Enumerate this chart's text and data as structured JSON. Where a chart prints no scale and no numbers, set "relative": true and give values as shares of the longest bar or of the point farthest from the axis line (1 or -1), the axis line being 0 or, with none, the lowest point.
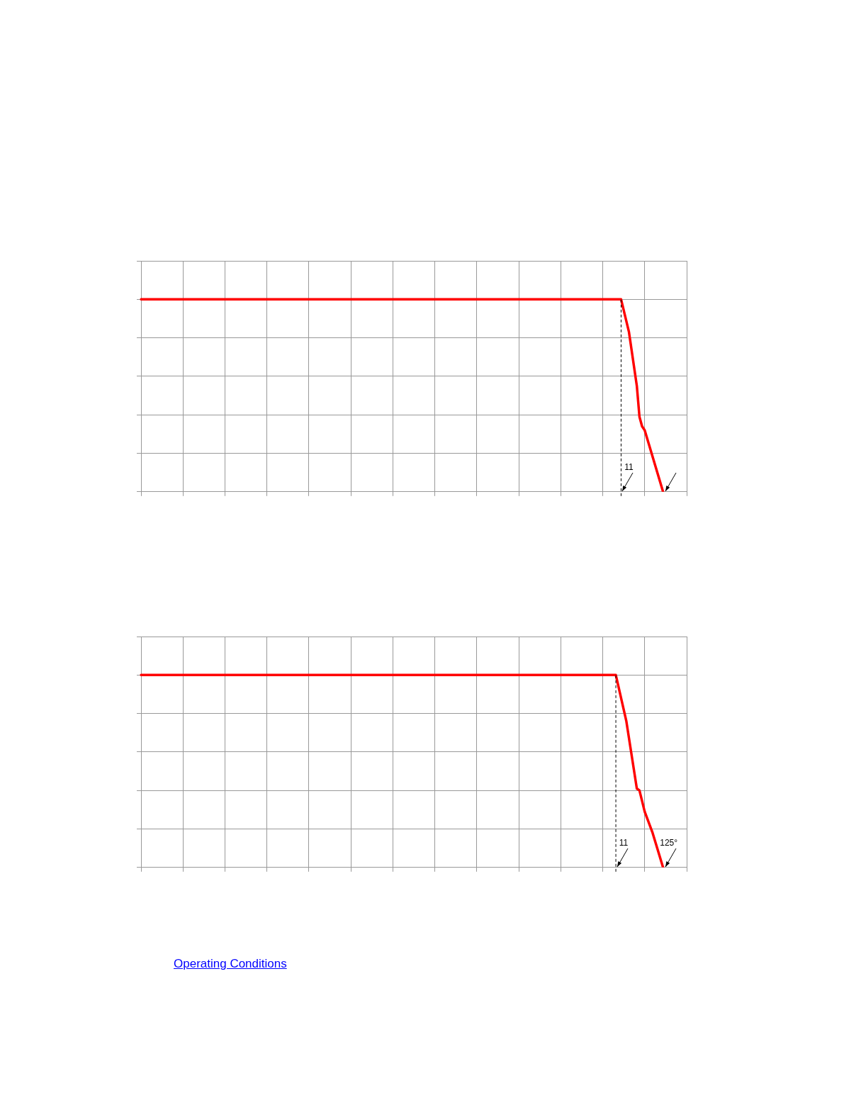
{
  "chart_data": [
    {
      "type": "line",
      "relative": true,
      "grid": true,
      "categories": [
        null,
        null,
        null,
        null,
        null,
        null,
        null,
        null,
        null,
        null,
        null,
        null,
        null,
        null,
        null,
        null,
        null,
        null,
        null,
        null,
        null,
        null,
        null,
        null,
        null,
        null,
        null,
        null,
        null,
        null,
        null,
        null,
        null,
        null,
        null,
        null,
        null,
        null,
        null,
        null,
        null,
        null,
        null,
        null,
        null,
        null,
        null,
        null,
        null,
        null,
        null,
        null,
        null,
        null,
        null,
        null,
        null,
        null,
        null,
        null,
        null,
        null,
        null,
        null,
        null,
        null,
        null,
        null,
        null,
        null,
        null,
        null,
        null,
        null,
        null,
        null,
        null,
        null,
        null,
        null,
        null,
        null,
        null,
        null,
        null,
        null,
        null,
        null,
        null,
        null,
        null,
        null,
        null,
        null,
        null,
        null,
        null,
        null,
        null,
        null,
        null,
        null,
        null,
        null,
        null,
        null,
        null,
        null,
        null,
        null,
        null,
        null,
        null,
        null,
        null,
        null,
        null,
        null,
        null,
        null,
        null,
        null,
        null,
        null,
        null,
        null,
        null,
        null,
        null,
        null,
        null,
        null,
        null,
        null,
        null,
        null,
        null,
        null,
        null,
        null,
        null,
        null,
        null,
        null,
        null,
        null,
        null,
        null,
        null,
        null,
        null,
        null,
        null,
        null,
        null,
        null,
        null,
        null,
        null,
        null,
        null,
        null,
        null,
        null,
        null,
        null,
        null,
        null,
        null,
        null,
        null,
        null,
        null,
        null,
        null,
        null,
        null,
        null,
        null,
        null,
        null,
        null,
        null,
        null,
        null,
        null,
        null,
        null,
        null,
        null,
        null,
        null,
        null,
        null,
        null,
        null,
        null,
        null,
        null,
        null,
        null,
        null,
        null,
        null,
        null,
        null,
        null,
        null,
        null
      ],
      "series": [
        {
          "color": "#ff0000",
          "values": [
            1,
            1,
            1,
            1,
            1,
            1,
            1,
            1,
            1,
            1,
            1,
            1,
            1,
            1,
            1,
            1,
            1,
            1,
            1,
            1,
            1,
            1,
            1,
            1,
            1,
            1,
            1,
            1,
            1,
            1,
            1,
            1,
            1,
            1,
            1,
            1,
            1,
            1,
            1,
            1,
            1,
            1,
            1,
            1,
            1,
            1,
            1,
            1,
            1,
            1,
            1,
            1,
            1,
            1,
            1,
            1,
            1,
            1,
            1,
            1,
            1,
            1,
            1,
            1,
            1,
            1,
            1,
            1,
            1,
            1,
            1,
            1,
            1,
            1,
            1,
            1,
            1,
            1,
            1,
            1,
            1,
            1,
            1,
            1,
            1,
            1,
            1,
            1,
            1,
            1,
            1,
            1,
            1,
            1,
            1,
            1,
            1,
            1,
            1,
            1,
            1,
            1,
            1,
            1,
            1,
            1,
            1,
            1,
            1,
            1,
            1,
            1,
            1,
            1,
            1,
            1,
            1,
            1,
            1,
            1,
            1,
            1,
            1,
            1,
            1,
            1,
            1,
            1,
            1,
            1,
            1,
            1,
            1,
            1,
            1,
            1,
            1,
            1,
            1,
            1,
            1,
            1,
            1,
            1,
            1,
            1,
            1,
            1,
            1,
            1,
            1,
            1,
            1,
            1,
            1,
            1,
            1,
            1,
            1,
            1,
            1,
            1,
            1,
            1,
            1,
            1,
            1,
            1,
            1,
            1,
            1,
            1,
            1,
            1,
            1,
            1,
            1,
            1,
            1,
            1,
            1,
            1,
            1,
            1,
            null,
            null,
            0.83,
            null,
            null,
            0.55,
            0.39,
            0.34,
            0.32,
            null,
            null,
            null,
            null,
            null,
            null,
            0,
            null,
            null,
            null,
            null,
            null,
            null,
            null,
            null,
            null
          ]
        }
      ],
      "annotations": [
        "11"
      ]
    },
    {
      "type": "line",
      "relative": true,
      "grid": true,
      "categories": [
        null,
        null,
        null,
        null,
        null,
        null,
        null,
        null,
        null,
        null,
        null,
        null,
        null,
        null,
        null,
        null,
        null,
        null,
        null,
        null,
        null,
        null,
        null,
        null,
        null,
        null,
        null,
        null,
        null,
        null,
        null,
        null,
        null,
        null,
        null,
        null,
        null,
        null,
        null,
        null,
        null,
        null,
        null,
        null,
        null,
        null,
        null,
        null,
        null,
        null,
        null,
        null,
        null,
        null,
        null,
        null,
        null,
        null,
        null,
        null,
        null,
        null,
        null,
        null,
        null,
        null,
        null,
        null,
        null,
        null,
        null,
        null,
        null,
        null,
        null,
        null,
        null,
        null,
        null,
        null,
        null,
        null,
        null,
        null,
        null,
        null,
        null,
        null,
        null,
        null,
        null,
        null,
        null,
        null,
        null,
        null,
        null,
        null,
        null,
        null,
        null,
        null,
        null,
        null,
        null,
        null,
        null,
        null,
        null,
        null,
        null,
        null,
        null,
        null,
        null,
        null,
        null,
        null,
        null,
        null,
        null,
        null,
        null,
        null,
        null,
        null,
        null,
        null,
        null,
        null,
        null,
        null,
        null,
        null,
        null,
        null,
        null,
        null,
        null,
        null,
        null,
        null,
        null,
        null,
        null,
        null,
        null,
        null,
        null,
        null,
        null,
        null,
        null,
        null,
        null,
        null,
        null,
        null,
        null,
        null,
        null,
        null,
        null,
        null,
        null,
        null,
        null,
        null,
        null,
        null,
        null,
        null,
        null,
        null,
        null,
        null,
        null,
        null,
        null,
        null,
        null,
        null,
        null,
        null,
        null,
        null,
        null,
        null,
        null,
        null,
        null,
        null,
        null,
        null,
        null,
        null,
        null,
        null,
        null,
        null,
        null,
        null,
        null,
        null,
        null,
        null,
        null,
        null,
        null
      ],
      "series": [
        {
          "color": "#ff0000",
          "values": [
            1,
            1,
            1,
            1,
            1,
            1,
            1,
            1,
            1,
            1,
            1,
            1,
            1,
            1,
            1,
            1,
            1,
            1,
            1,
            1,
            1,
            1,
            1,
            1,
            1,
            1,
            1,
            1,
            1,
            1,
            1,
            1,
            1,
            1,
            1,
            1,
            1,
            1,
            1,
            1,
            1,
            1,
            1,
            1,
            1,
            1,
            1,
            1,
            1,
            1,
            1,
            1,
            1,
            1,
            1,
            1,
            1,
            1,
            1,
            1,
            1,
            1,
            1,
            1,
            1,
            1,
            1,
            1,
            1,
            1,
            1,
            1,
            1,
            1,
            1,
            1,
            1,
            1,
            1,
            1,
            1,
            1,
            1,
            1,
            1,
            1,
            1,
            1,
            1,
            1,
            1,
            1,
            1,
            1,
            1,
            1,
            1,
            1,
            1,
            1,
            1,
            1,
            1,
            1,
            1,
            1,
            1,
            1,
            1,
            1,
            1,
            1,
            1,
            1,
            1,
            1,
            1,
            1,
            1,
            1,
            1,
            1,
            1,
            1,
            1,
            1,
            1,
            1,
            1,
            1,
            1,
            1,
            1,
            1,
            1,
            1,
            1,
            1,
            1,
            1,
            1,
            1,
            1,
            1,
            1,
            1,
            1,
            1,
            1,
            1,
            1,
            1,
            1,
            1,
            1,
            1,
            1,
            1,
            1,
            1,
            1,
            1,
            1,
            1,
            1,
            1,
            1,
            1,
            1,
            1,
            1,
            1,
            1,
            1,
            1,
            1,
            1,
            1,
            1,
            1,
            1,
            1,
            null,
            null,
            null,
            0.76,
            null,
            null,
            null,
            0.41,
            0.4,
            null,
            0.29,
            null,
            null,
            0.18,
            null,
            null,
            null,
            0,
            null,
            null,
            null,
            null,
            null,
            null,
            null,
            null,
            null
          ]
        }
      ],
      "annotations": [
        "11",
        "125°",
        "Operating Conditions"
      ]
    }
  ]
}
